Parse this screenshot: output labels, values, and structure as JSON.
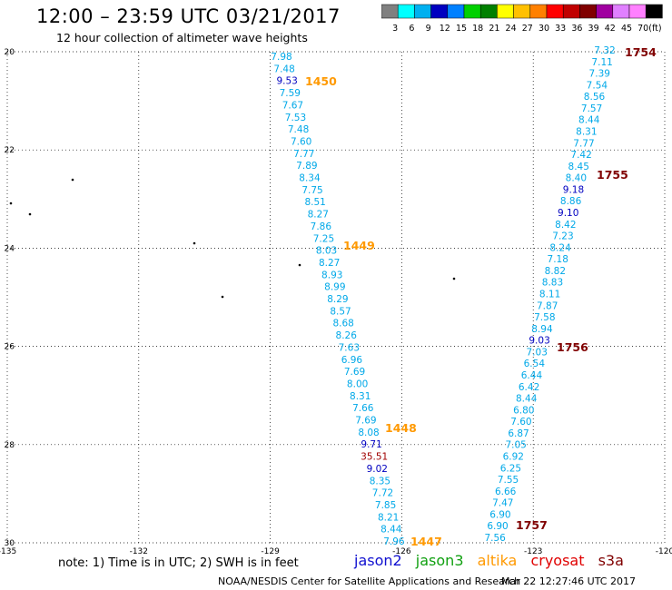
{
  "header": {
    "title": "12:00 – 23:59 UTC 03/21/2017",
    "subtitle": "12 hour collection of altimeter wave heights"
  },
  "colorbar": {
    "colors": [
      "#808080",
      "#00ffff",
      "#00b0f0",
      "#0000c0",
      "#0080ff",
      "#00d000",
      "#008000",
      "#ffff00",
      "#ffc000",
      "#ff8000",
      "#ff0000",
      "#c00000",
      "#800000",
      "#a000a0",
      "#e080ff",
      "#ff80ff",
      "#000000"
    ],
    "labels": [
      "3",
      "6",
      "9",
      "12",
      "15",
      "18",
      "21",
      "24",
      "27",
      "30",
      "33",
      "36",
      "39",
      "42",
      "45",
      "70",
      "(ft)"
    ]
  },
  "map": {
    "lon_labels": [
      "-135",
      "-132",
      "-129",
      "-126",
      "-123",
      "-120"
    ],
    "lat_labels": [
      "20",
      "22",
      "24",
      "26",
      "28",
      "30"
    ],
    "lon_range": [
      -135,
      -120
    ],
    "lat_range": [
      20,
      30
    ]
  },
  "tracks": [
    {
      "time": "1450",
      "color": "#ff9900"
    },
    {
      "time": "1449",
      "color": "#ff9900"
    },
    {
      "time": "1448",
      "color": "#ff9900"
    },
    {
      "time": "1447",
      "color": "#ff9900"
    },
    {
      "time": "1754",
      "color": "#800000"
    },
    {
      "time": "1755",
      "color": "#800000"
    },
    {
      "time": "1756",
      "color": "#800000"
    },
    {
      "time": "1757",
      "color": "#800000"
    }
  ],
  "swh_track_a": [
    "7.98",
    "7.48",
    "9.53",
    "7.59",
    "7.67",
    "7.53",
    "7.48",
    "7.60",
    "7.77",
    "7.89",
    "8.34",
    "7.75",
    "8.51",
    "8.27",
    "7.86",
    "7.25",
    "8.03",
    "8.27",
    "8.93",
    "8.99",
    "8.29",
    "8.57",
    "8.68",
    "8.26",
    "7.63",
    "6.96",
    "7.69",
    "8.00",
    "8.31",
    "7.66",
    "7.69",
    "8.08",
    "9.71",
    "35.51",
    "9.02",
    "8.35",
    "7.72",
    "7.85",
    "8.21",
    "8.44",
    "7.96"
  ],
  "swh_track_b": [
    "7.32",
    "7.11",
    "7.39",
    "7.54",
    "8.56",
    "7.57",
    "8.44",
    "8.31",
    "7.77",
    "7.42",
    "8.45",
    "8.40",
    "9.18",
    "8.86",
    "9.10",
    "8.42",
    "7.23",
    "8.24",
    "7.18",
    "8.82",
    "8.83",
    "8.11",
    "7.87",
    "7.58",
    "8.94",
    "9.03",
    "7.03",
    "6.54",
    "6.44",
    "6.42",
    "8.44",
    "6.80",
    "7.60",
    "6.87",
    "7.05",
    "6.92",
    "6.25",
    "7.55",
    "6.66",
    "7.47",
    "6.90",
    "6.90",
    "7.56"
  ],
  "footer": {
    "note": "note:  1) Time is in UTC;  2) SWH is in feet",
    "legend": [
      {
        "label": "jason2",
        "color": "#1010d0"
      },
      {
        "label": "jason3",
        "color": "#10a010"
      },
      {
        "label": "altika",
        "color": "#ff9900"
      },
      {
        "label": "cryosat",
        "color": "#e00000"
      },
      {
        "label": "s3a",
        "color": "#800000"
      }
    ],
    "credit": "NOAA/NESDIS Center for Satellite Applications and Research",
    "timestamp": "Mar 22 12:27:46 UTC 2017"
  }
}
